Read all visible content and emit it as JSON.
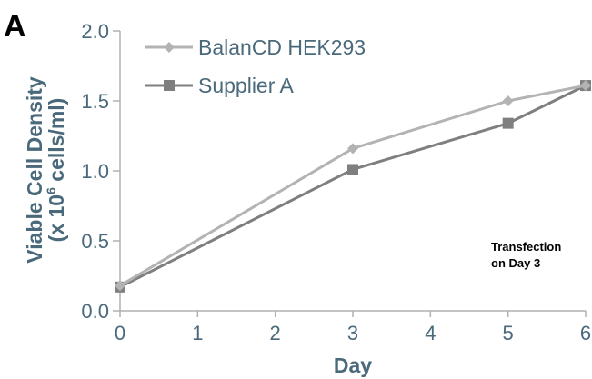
{
  "panel_label": "A",
  "chart_data": {
    "type": "line",
    "xlabel": "Day",
    "ylabel_line1": "Viable Cell Density",
    "ylabel_line2_prefix": "(x 10",
    "ylabel_line2_sup": "6",
    "ylabel_line2_suffix": " cells/ml)",
    "xlim": [
      0,
      6
    ],
    "ylim": [
      0,
      2
    ],
    "x_ticks": [
      "0",
      "1",
      "2",
      "3",
      "4",
      "5",
      "6"
    ],
    "y_ticks": [
      "0.0",
      "0.5",
      "1.0",
      "1.5",
      "2.0"
    ],
    "grid": false,
    "legend_position": "top-left",
    "series": [
      {
        "name": "BalanCD HEK293",
        "marker": "diamond",
        "color": "#b3b3b3",
        "x": [
          0,
          3,
          5,
          6
        ],
        "y": [
          0.18,
          1.16,
          1.5,
          1.61
        ]
      },
      {
        "name": "Supplier A",
        "marker": "square",
        "color": "#7f7f7f",
        "x": [
          0,
          3,
          5,
          6
        ],
        "y": [
          0.17,
          1.01,
          1.34,
          1.61
        ]
      }
    ],
    "annotation": {
      "line1": "Transfection",
      "line2": "on Day 3"
    }
  }
}
